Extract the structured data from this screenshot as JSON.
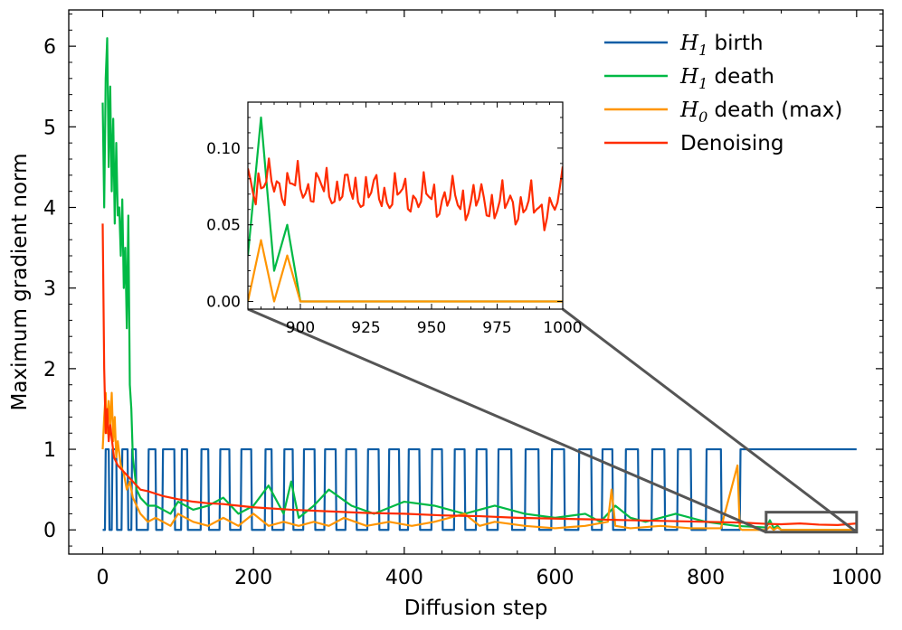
{
  "chart_data": {
    "type": "line",
    "title": "",
    "xlabel": "Diffusion step",
    "ylabel": "Maximum gradient norm",
    "xlim": [
      -45,
      1035
    ],
    "ylim": [
      -0.3,
      6.45
    ],
    "xticks": [
      0,
      200,
      400,
      600,
      800,
      1000
    ],
    "xtick_labels": [
      "0",
      "200",
      "400",
      "600",
      "800",
      "1000"
    ],
    "yticks": [
      0,
      1,
      2,
      3,
      4,
      5,
      6
    ],
    "ytick_labels": [
      "0",
      "1",
      "2",
      "3",
      "4",
      "5",
      "6"
    ],
    "grid": false,
    "legend_position": "top-right",
    "series": [
      {
        "name": "H1 birth",
        "legend_main": "H",
        "legend_sub": "1",
        "legend_rest": " birth",
        "color": "#0c5da5",
        "x": [
          0,
          3,
          4,
          8,
          9,
          12,
          13,
          18,
          19,
          25,
          26,
          33,
          34,
          38,
          39,
          44,
          45,
          60,
          61,
          70,
          71,
          79,
          80,
          95,
          96,
          104,
          105,
          112,
          113,
          130,
          131,
          140,
          141,
          155,
          156,
          168,
          169,
          183,
          184,
          197,
          198,
          215,
          216,
          224,
          225,
          240,
          241,
          252,
          253,
          266,
          267,
          281,
          282,
          294,
          295,
          309,
          310,
          322,
          323,
          336,
          337,
          351,
          352,
          366,
          367,
          379,
          380,
          393,
          394,
          405,
          406,
          420,
          421,
          436,
          437,
          450,
          451,
          466,
          467,
          480,
          481,
          495,
          496,
          509,
          510,
          524,
          525,
          542,
          543,
          560,
          561,
          578,
          579,
          595,
          596,
          612,
          613,
          631,
          632,
          648,
          649,
          662,
          663,
          676,
          677,
          693,
          694,
          710,
          711,
          728,
          729,
          745,
          746,
          762,
          763,
          780,
          781,
          800,
          801,
          820,
          821,
          845,
          846,
          1000
        ],
        "y": [
          0,
          0,
          1,
          1,
          0,
          0,
          1,
          1,
          0,
          0,
          1,
          1,
          0,
          0,
          1,
          1,
          0,
          0,
          1,
          1,
          0,
          0,
          1,
          1,
          0,
          0,
          1,
          1,
          0,
          0,
          1,
          1,
          0,
          0,
          1,
          1,
          0,
          0,
          1,
          1,
          0,
          0,
          1,
          1,
          0,
          0,
          1,
          1,
          0,
          0,
          1,
          1,
          0,
          0,
          1,
          1,
          0,
          0,
          1,
          1,
          0,
          0,
          1,
          1,
          0,
          0,
          1,
          1,
          0,
          0,
          1,
          1,
          0,
          0,
          1,
          1,
          0,
          0,
          1,
          1,
          0,
          0,
          1,
          1,
          0,
          0,
          1,
          1,
          0,
          0,
          1,
          1,
          0,
          0,
          1,
          1,
          0,
          0,
          1,
          1,
          0,
          0,
          1,
          1,
          0,
          0,
          1,
          1,
          0,
          0,
          1,
          1,
          0,
          0,
          1,
          1,
          0,
          0,
          1,
          1,
          0,
          0,
          1,
          1
        ]
      },
      {
        "name": "H1 death",
        "legend_main": "H",
        "legend_sub": "1",
        "legend_rest": " death",
        "color": "#00b945",
        "x": [
          0,
          2,
          4,
          6,
          8,
          10,
          12,
          14,
          16,
          18,
          20,
          22,
          24,
          26,
          28,
          30,
          32,
          34,
          36,
          38,
          40,
          45,
          50,
          60,
          70,
          80,
          90,
          100,
          120,
          140,
          160,
          180,
          200,
          220,
          240,
          250,
          260,
          280,
          300,
          330,
          360,
          400,
          440,
          480,
          520,
          560,
          600,
          640,
          660,
          680,
          700,
          720,
          760,
          800,
          840,
          880,
          885,
          890,
          895,
          900,
          1000
        ],
        "y": [
          5.3,
          4.0,
          5.6,
          6.1,
          4.5,
          5.5,
          4.2,
          5.1,
          3.8,
          4.8,
          3.9,
          4.0,
          3.4,
          4.1,
          3.0,
          3.5,
          2.5,
          3.9,
          1.8,
          1.5,
          0.9,
          0.5,
          0.4,
          0.3,
          0.3,
          0.25,
          0.2,
          0.35,
          0.25,
          0.3,
          0.4,
          0.2,
          0.3,
          0.55,
          0.2,
          0.6,
          0.15,
          0.3,
          0.5,
          0.3,
          0.2,
          0.35,
          0.3,
          0.2,
          0.3,
          0.2,
          0.15,
          0.2,
          0.1,
          0.3,
          0.15,
          0.1,
          0.2,
          0.1,
          0.05,
          0.03,
          0.12,
          0.02,
          0.05,
          0.0,
          0.0
        ]
      },
      {
        "name": "H0 death (max)",
        "legend_main": "H",
        "legend_sub": "0",
        "legend_rest": " death (max)",
        "color": "#ff9500",
        "x": [
          0,
          2,
          4,
          6,
          8,
          10,
          12,
          14,
          16,
          18,
          20,
          24,
          28,
          32,
          36,
          40,
          45,
          50,
          60,
          70,
          80,
          90,
          100,
          120,
          140,
          160,
          180,
          200,
          220,
          240,
          260,
          280,
          300,
          320,
          350,
          380,
          410,
          440,
          480,
          500,
          520,
          560,
          600,
          640,
          670,
          675,
          680,
          700,
          740,
          780,
          820,
          842,
          845,
          848,
          880,
          885,
          890,
          895,
          900,
          1000
        ],
        "y": [
          1.0,
          1.4,
          1.7,
          1.2,
          1.6,
          1.3,
          1.7,
          1.1,
          1.4,
          0.9,
          1.1,
          0.8,
          0.7,
          0.5,
          0.6,
          0.4,
          0.3,
          0.2,
          0.1,
          0.15,
          0.1,
          0.05,
          0.2,
          0.1,
          0.05,
          0.15,
          0.05,
          0.2,
          0.05,
          0.1,
          0.05,
          0.1,
          0.05,
          0.15,
          0.05,
          0.1,
          0.05,
          0.1,
          0.2,
          0.05,
          0.1,
          0.05,
          0.02,
          0.05,
          0.1,
          0.5,
          0.05,
          0.02,
          0.05,
          0.02,
          0.02,
          0.8,
          0.02,
          0.0,
          0.0,
          0.04,
          0.0,
          0.03,
          0.0,
          0.0
        ]
      },
      {
        "name": "Denoising",
        "legend_main": "Denoising",
        "legend_sub": "",
        "legend_rest": "",
        "color": "#ff2c00",
        "x": [
          0,
          2,
          4,
          6,
          8,
          10,
          15,
          20,
          25,
          30,
          40,
          50,
          60,
          70,
          80,
          100,
          120,
          140,
          160,
          180,
          200,
          250,
          300,
          350,
          400,
          450,
          500,
          550,
          600,
          650,
          700,
          750,
          800,
          850,
          880,
          900,
          925,
          950,
          975,
          1000
        ],
        "y": [
          3.8,
          2.0,
          1.2,
          1.5,
          1.1,
          1.3,
          0.9,
          0.8,
          0.75,
          0.7,
          0.6,
          0.5,
          0.48,
          0.45,
          0.42,
          0.38,
          0.35,
          0.33,
          0.32,
          0.3,
          0.28,
          0.25,
          0.23,
          0.21,
          0.2,
          0.18,
          0.17,
          0.15,
          0.14,
          0.13,
          0.12,
          0.11,
          0.1,
          0.09,
          0.075,
          0.07,
          0.08,
          0.065,
          0.06,
          0.08
        ]
      }
    ],
    "inset": {
      "xlim": [
        880,
        1000
      ],
      "ylim": [
        -0.005,
        0.13
      ],
      "xticks": [
        900,
        925,
        950,
        975,
        1000
      ],
      "xtick_labels": [
        "900",
        "925",
        "950",
        "975",
        "1000"
      ],
      "yticks": [
        0.0,
        0.05,
        0.1
      ],
      "ytick_labels": [
        "0.00",
        "0.05",
        "0.10"
      ],
      "zoom_box": {
        "xlim": [
          880,
          1000
        ],
        "ylim": [
          -0.005,
          0.13
        ]
      }
    }
  }
}
